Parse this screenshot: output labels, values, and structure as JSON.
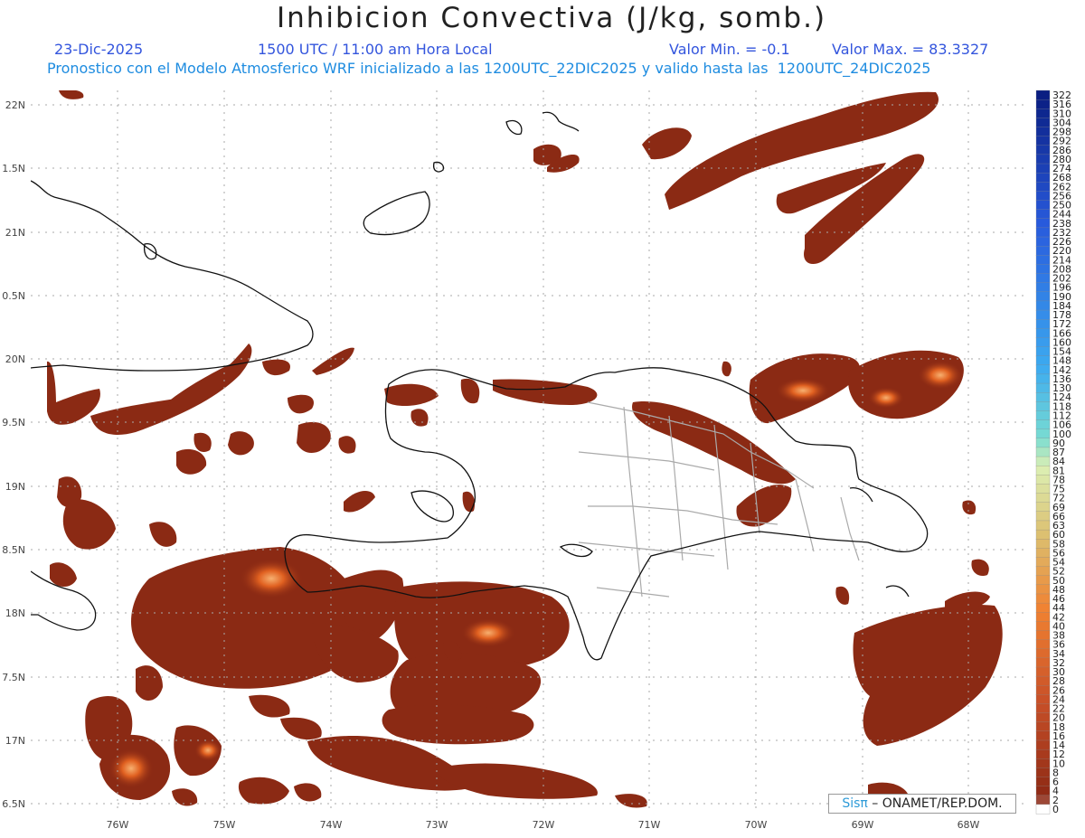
{
  "title": "Inhibicion Convectiva (J/kg, somb.)",
  "header": {
    "date": "23-Dic-2025",
    "time": "1500 UTC / 11:00 am Hora Local",
    "valor_min": "Valor Min. = -0.1",
    "valor_max": "Valor Max. = 83.3327",
    "subtitle": "Pronostico con el Modelo Atmosferico WRF inicializado a las 1200UTC_22DIC2025 y valido hasta las  1200UTC_24DIC2025"
  },
  "map": {
    "lat_labels": [
      "22N",
      "1.5N",
      "21N",
      "0.5N",
      "20N",
      "9.5N",
      "19N",
      "8.5N",
      "18N",
      "7.5N",
      "17N",
      "6.5N"
    ],
    "lon_labels": [
      "76W",
      "75W",
      "74W",
      "73W",
      "72W",
      "71W",
      "70W",
      "69W",
      "68W"
    ],
    "field_color": "#8b2a14",
    "field_highlight": "#e06020"
  },
  "colorbar": {
    "labels": [
      "322",
      "316",
      "310",
      "304",
      "298",
      "292",
      "286",
      "280",
      "274",
      "268",
      "262",
      "256",
      "250",
      "244",
      "238",
      "232",
      "226",
      "220",
      "214",
      "208",
      "202",
      "196",
      "190",
      "184",
      "178",
      "172",
      "166",
      "160",
      "154",
      "148",
      "142",
      "136",
      "130",
      "124",
      "118",
      "112",
      "106",
      "100",
      "90",
      "87",
      "84",
      "81",
      "78",
      "75",
      "72",
      "69",
      "66",
      "63",
      "60",
      "58",
      "56",
      "54",
      "52",
      "50",
      "48",
      "46",
      "44",
      "42",
      "40",
      "38",
      "36",
      "34",
      "32",
      "30",
      "28",
      "26",
      "24",
      "22",
      "20",
      "18",
      "16",
      "14",
      "12",
      "10",
      "8",
      "6",
      "4",
      "2",
      "0"
    ]
  },
  "credit": {
    "brand": "Sisπ",
    "text": " – ONAMET/REP.DOM."
  }
}
